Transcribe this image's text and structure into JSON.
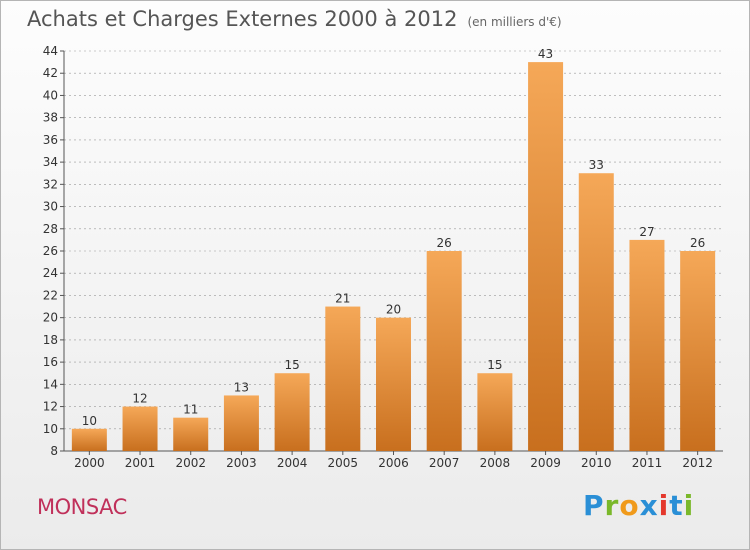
{
  "title": "Achats et Charges Externes 2000 à 2012",
  "unit": "(en milliers d'€)",
  "commune": "MONSAC",
  "logo": {
    "letters": [
      "P",
      "r",
      "o",
      "x",
      "i",
      "t",
      "i"
    ],
    "colors": [
      "#2a8fd6",
      "#7ab82a",
      "#f09a1b",
      "#2a8fd6",
      "#e4382c",
      "#2a8fd6",
      "#7ab82a"
    ]
  },
  "colors": {
    "bar_light": "#f5a858",
    "bar_dark": "#c86f1e",
    "grid": "#999999"
  },
  "chart_data": {
    "type": "bar",
    "categories": [
      "2000",
      "2001",
      "2002",
      "2003",
      "2004",
      "2005",
      "2006",
      "2007",
      "2008",
      "2009",
      "2010",
      "2011",
      "2012"
    ],
    "values": [
      10,
      12,
      11,
      13,
      15,
      21,
      20,
      26,
      15,
      43,
      33,
      27,
      26
    ],
    "ylim": [
      8,
      44
    ],
    "yticks": [
      8,
      10,
      12,
      14,
      16,
      18,
      20,
      22,
      24,
      26,
      28,
      30,
      32,
      34,
      36,
      38,
      40,
      42,
      44
    ],
    "grid": "horizontal dashed",
    "data_labels": true
  }
}
